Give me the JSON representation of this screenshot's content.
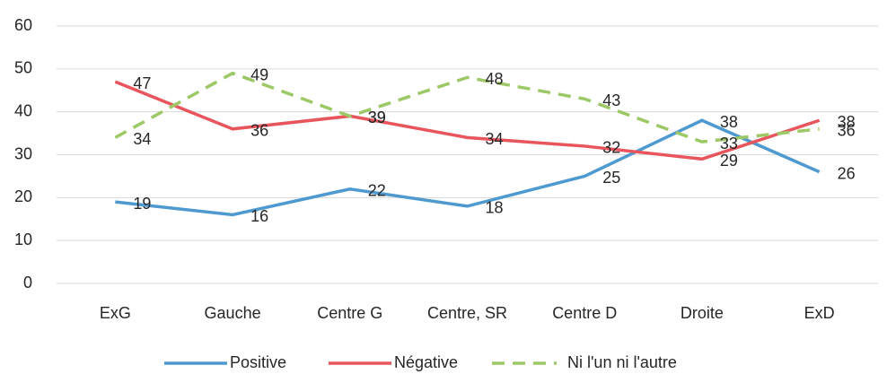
{
  "chart_data": {
    "type": "line",
    "categories": [
      "ExG",
      "Gauche",
      "Centre G",
      "Centre, SR",
      "Centre D",
      "Droite",
      "ExD"
    ],
    "series": [
      {
        "name": "Positive",
        "color": "#4e9ad0",
        "values": [
          19,
          16,
          22,
          18,
          25,
          38,
          26
        ]
      },
      {
        "name": "Négative",
        "color": "#e8555c",
        "values": [
          47,
          36,
          39,
          34,
          32,
          29,
          38
        ]
      },
      {
        "name": "Ni l'un ni l'autre",
        "color": "#9dc866",
        "dashed": true,
        "values": [
          34,
          49,
          39,
          48,
          43,
          33,
          36
        ]
      }
    ],
    "ylim": [
      0,
      60
    ],
    "yticks": [
      0,
      10,
      20,
      30,
      40,
      50,
      60
    ],
    "grid": true,
    "legend": "bottom"
  }
}
